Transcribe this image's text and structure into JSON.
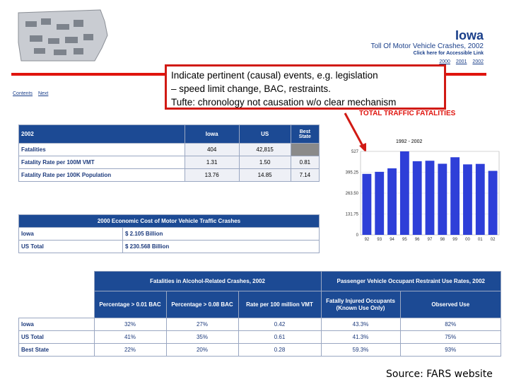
{
  "header": {
    "title": "Iowa",
    "subtitle": "Toll Of Motor Vehicle Crashes, 2002",
    "accessible_link": "Click here for Accessible Link",
    "years": [
      "2000",
      "2001",
      "2002"
    ]
  },
  "nav": {
    "links": [
      "Contents",
      "Next"
    ]
  },
  "callout": {
    "line1": "Indicate pertinent (causal) events, e.g. legislation",
    "line2": "– speed limit change, BAC, restraints.",
    "line3": "Tufte: chronology not causation w/o clear mechanism"
  },
  "fatalities_table": {
    "headers": [
      "2002",
      "Iowa",
      "US",
      "Best State"
    ],
    "rows": [
      {
        "label": "Fatalities",
        "iowa": "404",
        "us": "42,815",
        "best": ""
      },
      {
        "label": "Fatality Rate per 100M VMT",
        "iowa": "1.31",
        "us": "1.50",
        "best": "0.81"
      },
      {
        "label": "Fatality Rate per 100K Population",
        "iowa": "13.76",
        "us": "14.85",
        "best": "7.14"
      }
    ]
  },
  "cost_table": {
    "title": "2000 Economic Cost of Motor Vehicle Traffic Crashes",
    "rows": [
      {
        "label": "Iowa",
        "value": "$ 2.105 Billion"
      },
      {
        "label": "US Total",
        "value": "$ 230.568 Billion"
      }
    ]
  },
  "alcohol_table": {
    "group1": "Fatalities in Alcohol-Related Crashes, 2002",
    "group2": "Passenger Vehicle Occupant Restraint Use Rates, 2002",
    "cols": [
      "Percentage > 0.01 BAC",
      "Percentage > 0.08 BAC",
      "Rate per 100 million VMT",
      "Fatally Injured Occupants (Known Use Only)",
      "Observed Use"
    ],
    "rows": [
      {
        "label": "Iowa",
        "values": [
          "32%",
          "27%",
          "0.42",
          "43.3%",
          "82%"
        ]
      },
      {
        "label": "US Total",
        "values": [
          "41%",
          "35%",
          "0.61",
          "41.3%",
          "75%"
        ]
      },
      {
        "label": "Best State",
        "values": [
          "22%",
          "20%",
          "0.28",
          "59.3%",
          "93%"
        ]
      }
    ]
  },
  "chart_data": {
    "type": "bar",
    "title": "TOTAL TRAFFIC FATALITIES",
    "subtitle": "1992 - 2002",
    "categories": [
      "92",
      "93",
      "94",
      "95",
      "96",
      "97",
      "98",
      "99",
      "00",
      "01",
      "02"
    ],
    "values": [
      385,
      398,
      420,
      527,
      465,
      468,
      449,
      490,
      445,
      448,
      404
    ],
    "yticks": [
      "0",
      "131.75",
      "263.50",
      "395.25",
      "527"
    ],
    "ylim": [
      0,
      527
    ],
    "bar_color": "#2e3fd8"
  },
  "source": "Source: FARS website"
}
